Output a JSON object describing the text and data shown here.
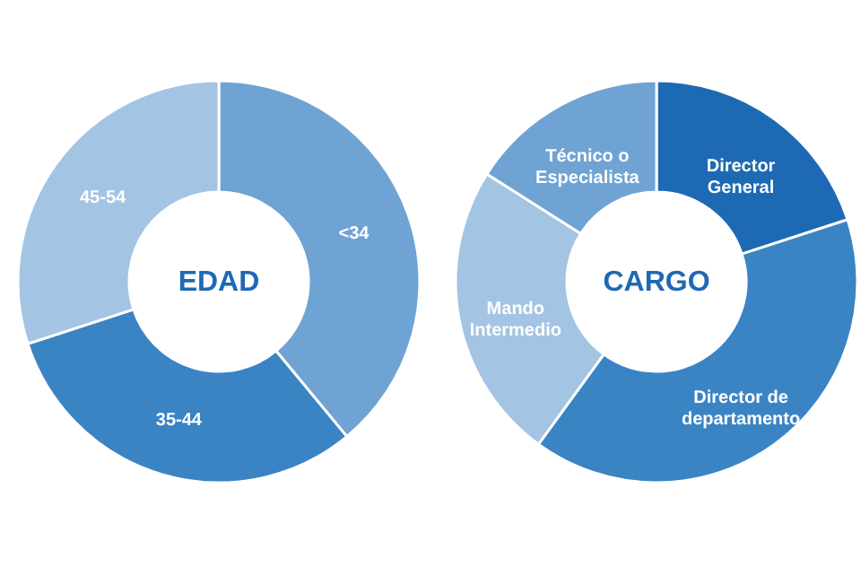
{
  "chart_data": [
    {
      "type": "donut",
      "title": "EDAD",
      "categories": [
        "<34",
        "35-44",
        "45-54"
      ],
      "values": [
        39,
        31,
        30
      ],
      "colors": [
        "#6fa3d3",
        "#3b84c4",
        "#a3c4e3"
      ]
    },
    {
      "type": "donut",
      "title": "CARGO",
      "categories": [
        "Director\nGeneral",
        "Director de\ndepartamento",
        "Mando\nIntermedio",
        "Técnico o\nEspecialista"
      ],
      "values": [
        20,
        40,
        24,
        16
      ],
      "colors": [
        "#1e69b3",
        "#3b84c4",
        "#a3c4e3",
        "#6fa3d3"
      ]
    }
  ]
}
